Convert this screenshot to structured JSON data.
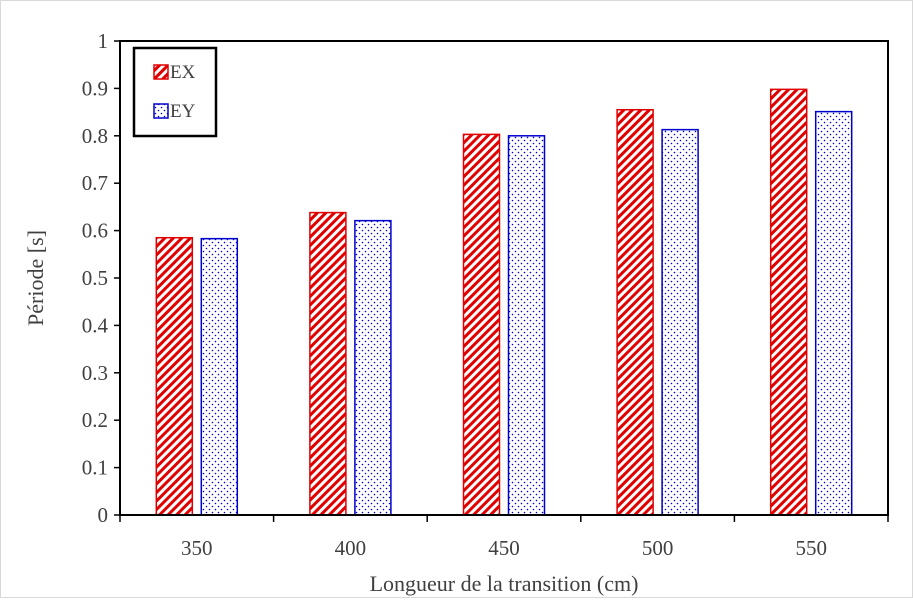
{
  "chart_data": {
    "type": "bar",
    "title": "",
    "xlabel": "Longueur de la transition (cm)",
    "ylabel": "Période [s]",
    "categories": [
      "350",
      "400",
      "450",
      "500",
      "550"
    ],
    "series": [
      {
        "name": "EX",
        "values": [
          0.585,
          0.638,
          0.803,
          0.855,
          0.898
        ],
        "color": "#e00000",
        "pattern": "diagonal-hatch"
      },
      {
        "name": "EY",
        "values": [
          0.583,
          0.621,
          0.8,
          0.813,
          0.851
        ],
        "color": "#0000cc",
        "pattern": "dots"
      }
    ],
    "ylim": [
      0,
      1
    ],
    "yticks": [
      "0",
      "0.1",
      "0.2",
      "0.3",
      "0.4",
      "0.5",
      "0.6",
      "0.7",
      "0.8",
      "0.9",
      "1"
    ],
    "grid": false,
    "legend": "top-left"
  }
}
